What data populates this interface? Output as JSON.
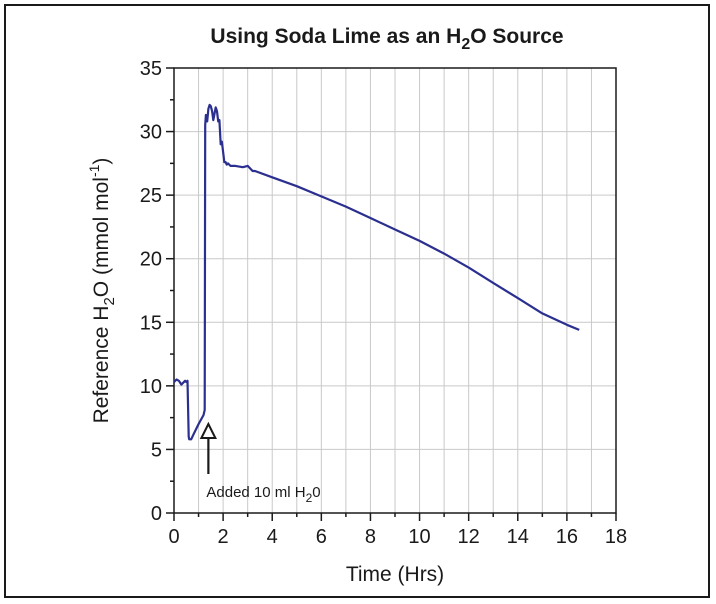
{
  "chart_data": {
    "type": "line",
    "title": {
      "main": "Using Soda Lime as an H",
      "sub": "2",
      "rest": "O Source"
    },
    "xlabel": "Time (Hrs)",
    "ylabel": {
      "pre": "Reference H",
      "sub": "2",
      "mid": "O (mmol mol",
      "sup": "-1",
      "post": ")"
    },
    "xlim": [
      0,
      18
    ],
    "ylim": [
      0,
      35
    ],
    "xticks": [
      0,
      2,
      4,
      6,
      8,
      10,
      12,
      14,
      16,
      18
    ],
    "yticks": [
      0,
      5,
      10,
      15,
      20,
      25,
      30,
      35
    ],
    "grid": true,
    "series_color": "#2b2f8f",
    "series": [
      {
        "x": [
          0.0,
          0.1,
          0.2,
          0.3,
          0.35,
          0.45,
          0.5,
          0.55,
          0.6,
          0.62,
          0.7,
          0.8,
          1.0,
          1.2,
          1.25,
          1.27,
          1.3,
          1.35,
          1.4,
          1.45,
          1.5,
          1.55,
          1.6,
          1.65,
          1.7,
          1.75,
          1.8,
          1.85,
          1.9,
          1.95,
          2.0,
          2.05,
          2.1,
          2.15,
          2.2,
          2.3,
          2.5,
          2.8,
          3.0,
          3.1,
          3.2,
          3.3,
          4.0,
          5.0,
          6.0,
          7.0,
          8.0,
          9.0,
          10.0,
          11.0,
          12.0,
          13.0,
          14.0,
          15.0,
          16.0,
          16.5
        ],
        "y": [
          10.3,
          10.5,
          10.4,
          10.1,
          10.2,
          10.4,
          10.3,
          10.4,
          6.0,
          5.8,
          5.8,
          6.2,
          7.0,
          7.7,
          8.1,
          30.5,
          31.3,
          30.8,
          31.8,
          32.1,
          32.0,
          31.6,
          30.9,
          31.4,
          31.9,
          31.6,
          30.8,
          30.9,
          29.0,
          29.2,
          28.4,
          27.6,
          27.6,
          27.4,
          27.5,
          27.3,
          27.3,
          27.2,
          27.3,
          27.1,
          26.9,
          26.9,
          26.4,
          25.7,
          24.9,
          24.1,
          23.2,
          22.3,
          21.4,
          20.4,
          19.3,
          18.1,
          16.9,
          15.7,
          14.8,
          14.4
        ]
      }
    ],
    "annotation": {
      "text": "Added 10 ml H",
      "sub": "2",
      "rest": "0",
      "x": 1.4,
      "y": 7.0
    }
  }
}
